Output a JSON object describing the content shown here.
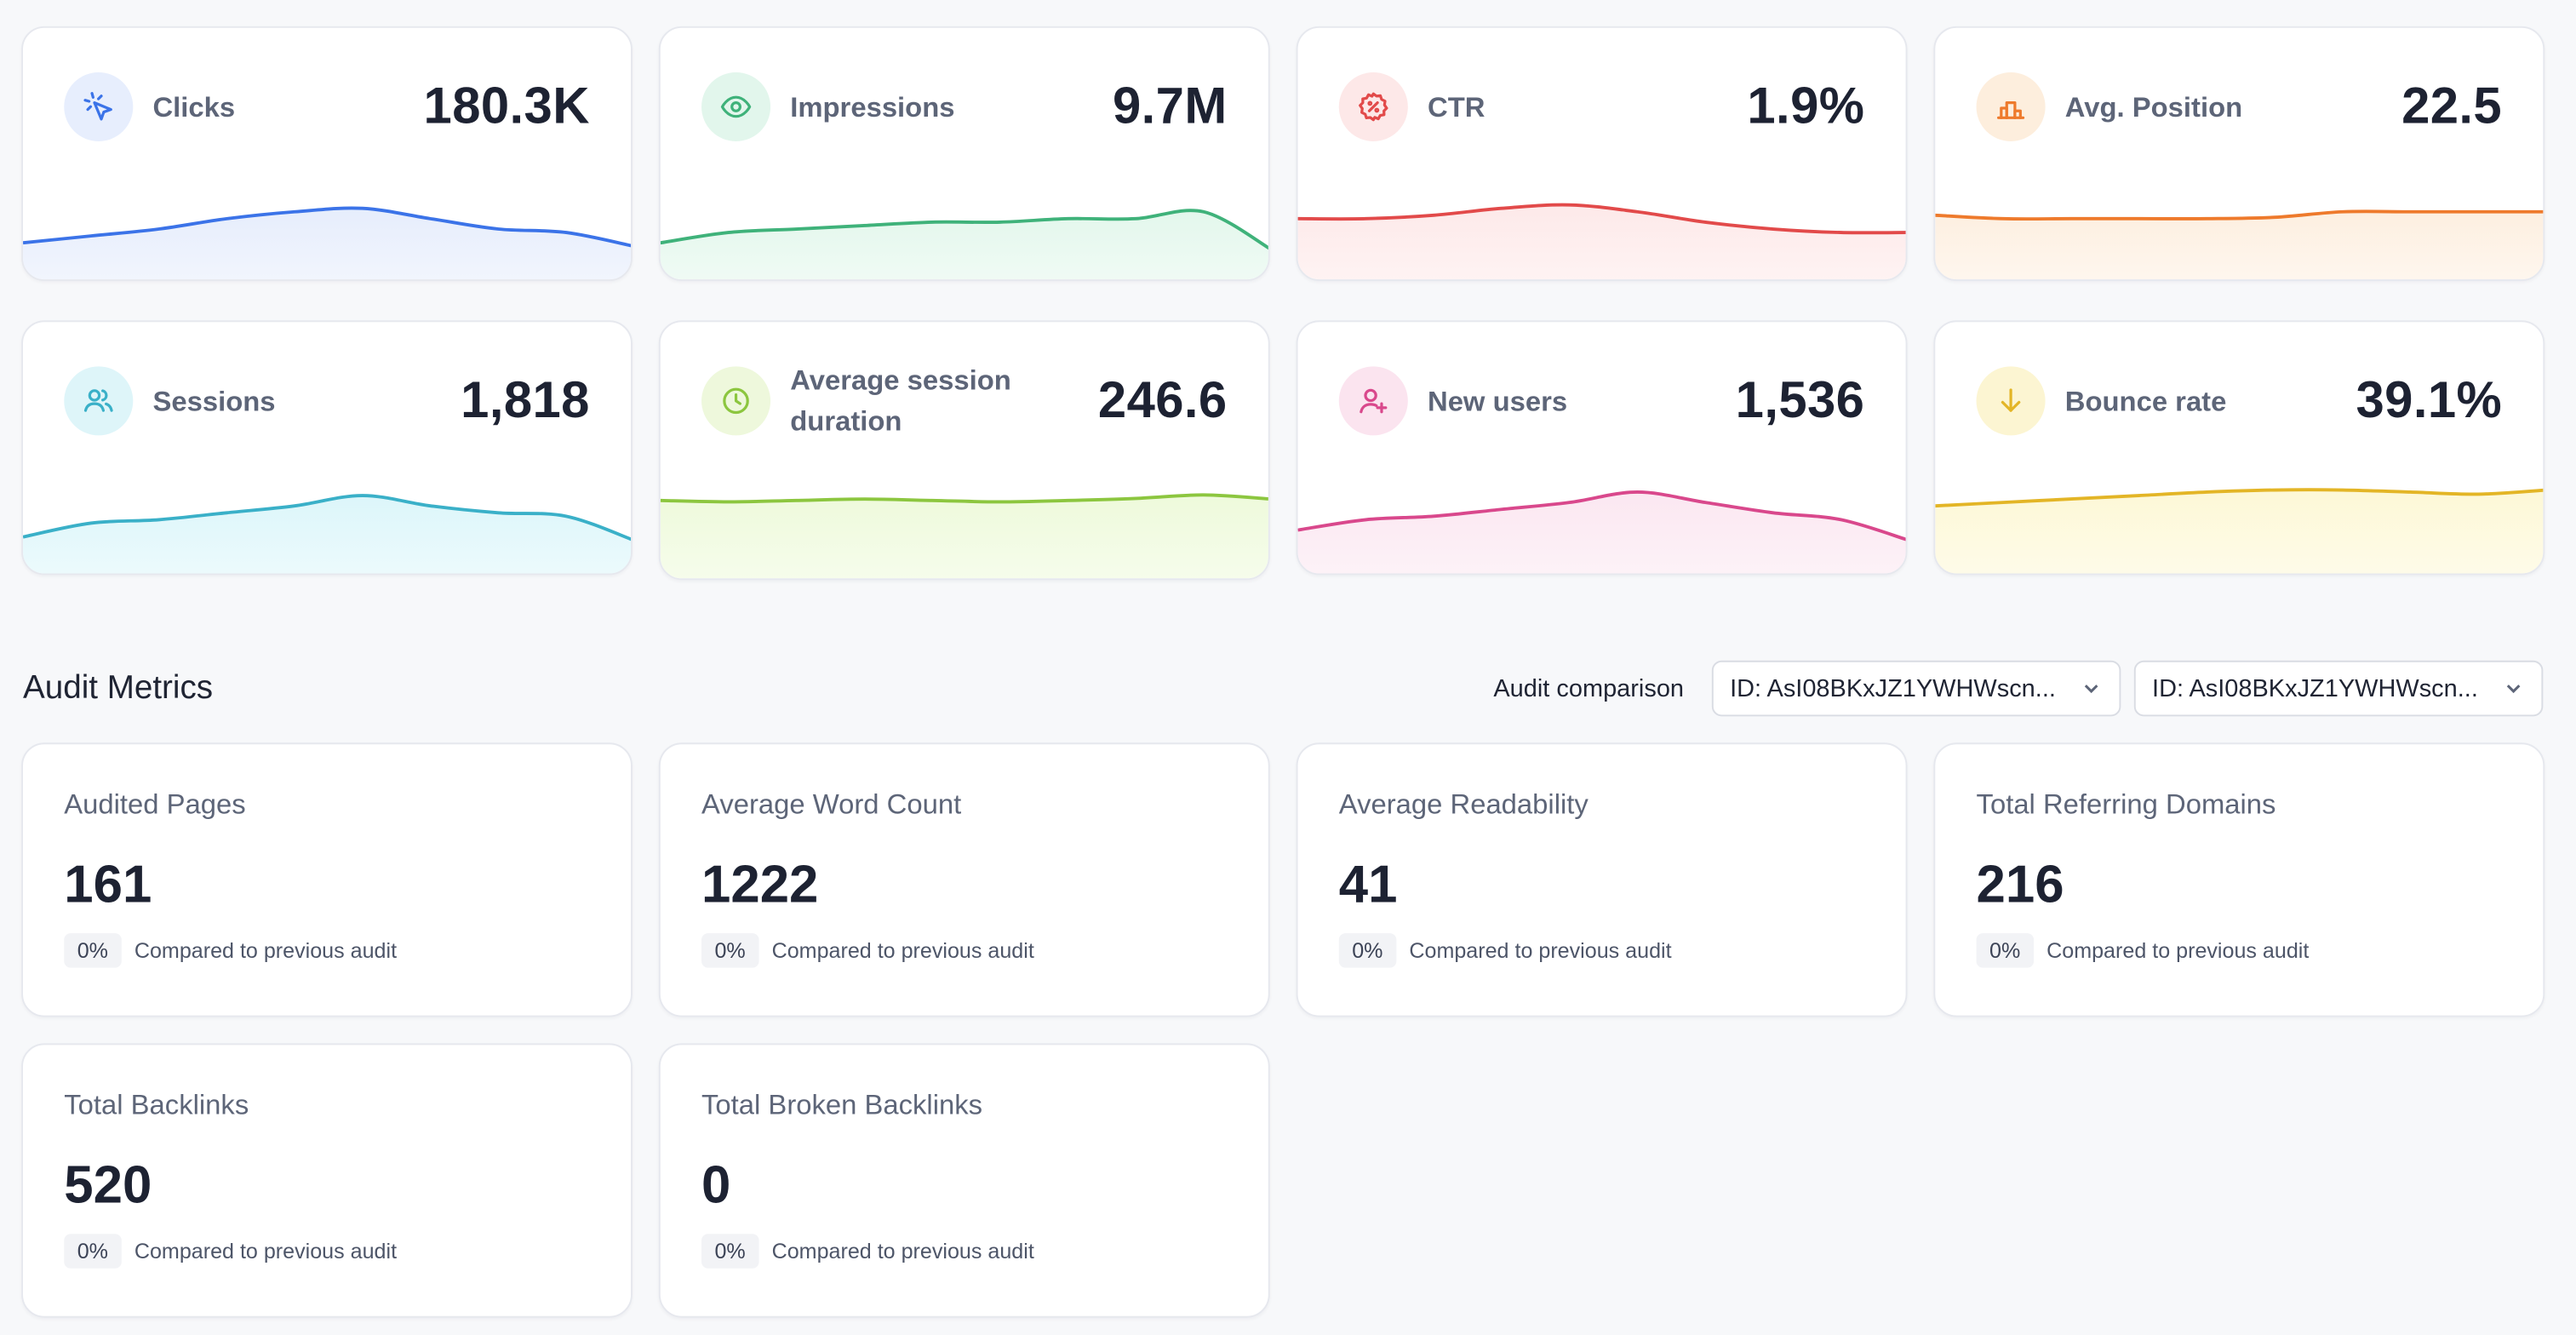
{
  "metrics": [
    {
      "label": "Clicks",
      "value": "180.3K",
      "icon": "cursor-click-icon",
      "color": "#3b73e8",
      "bg": "#e7eefd",
      "fill": "#e6edfc",
      "trend": [
        0.1,
        0.2,
        0.3,
        0.45,
        0.55,
        0.6,
        0.45,
        0.3,
        0.25,
        0.05
      ]
    },
    {
      "label": "Impressions",
      "value": "9.7M",
      "icon": "eye-icon",
      "color": "#3fb27a",
      "bg": "#e2f6ec",
      "fill": "#e3f7ec",
      "trend": [
        0.1,
        0.25,
        0.3,
        0.35,
        0.4,
        0.4,
        0.45,
        0.45,
        0.55,
        0.0
      ]
    },
    {
      "label": "CTR",
      "value": "1.9%",
      "icon": "percent-badge-icon",
      "color": "#e24a4a",
      "bg": "#fde8e8",
      "fill": "#fde9e9",
      "trend": [
        0.45,
        0.45,
        0.5,
        0.6,
        0.65,
        0.55,
        0.4,
        0.3,
        0.25,
        0.25
      ]
    },
    {
      "label": "Avg. Position",
      "value": "22.5",
      "icon": "podium-icon",
      "color": "#ee7a2c",
      "bg": "#fdeedd",
      "fill": "#fdefe0",
      "trend": [
        0.5,
        0.45,
        0.45,
        0.45,
        0.45,
        0.47,
        0.55,
        0.55,
        0.55,
        0.55
      ]
    },
    {
      "label": "Sessions",
      "value": "1,818",
      "icon": "users-icon",
      "color": "#3ab0c8",
      "bg": "#def5f9",
      "fill": "#dcf6fa",
      "trend": [
        0.1,
        0.3,
        0.35,
        0.45,
        0.55,
        0.7,
        0.55,
        0.45,
        0.4,
        0.05
      ]
    },
    {
      "label": "Average session duration",
      "value": "246.6",
      "icon": "clock-icon",
      "color": "#8cc63f",
      "bg": "#eef8dc",
      "fill": "#eefadb",
      "trend": [
        0.7,
        0.68,
        0.7,
        0.72,
        0.7,
        0.68,
        0.7,
        0.73,
        0.78,
        0.72
      ]
    },
    {
      "label": "New users",
      "value": "1,536",
      "icon": "user-plus-icon",
      "color": "#d9488c",
      "bg": "#fbe4ef",
      "fill": "#fbe7f1",
      "trend": [
        0.2,
        0.35,
        0.4,
        0.5,
        0.6,
        0.75,
        0.6,
        0.45,
        0.35,
        0.05
      ]
    },
    {
      "label": "Bounce rate",
      "value": "39.1%",
      "icon": "arrow-down-icon",
      "color": "#e3b526",
      "bg": "#fcf5d2",
      "fill": "#fdf8d6",
      "trend": [
        0.55,
        0.6,
        0.65,
        0.7,
        0.75,
        0.78,
        0.78,
        0.75,
        0.72,
        0.78
      ]
    }
  ],
  "audit": {
    "title": "Audit Metrics",
    "comparison_label": "Audit comparison",
    "select_a": "ID: AsI08BKxJZ1YWHWscn...",
    "select_b": "ID: AsI08BKxJZ1YWHWscn...",
    "cards": [
      {
        "label": "Audited Pages",
        "value": "161",
        "delta": "0%",
        "foot": "Compared to previous audit"
      },
      {
        "label": "Average Word Count",
        "value": "1222",
        "delta": "0%",
        "foot": "Compared to previous audit"
      },
      {
        "label": "Average Readability",
        "value": "41",
        "delta": "0%",
        "foot": "Compared to previous audit"
      },
      {
        "label": "Total Referring Domains",
        "value": "216",
        "delta": "0%",
        "foot": "Compared to previous audit"
      },
      {
        "label": "Total Backlinks",
        "value": "520",
        "delta": "0%",
        "foot": "Compared to previous audit"
      },
      {
        "label": "Total Broken Backlinks",
        "value": "0",
        "delta": "0%",
        "foot": "Compared to previous audit"
      }
    ]
  }
}
